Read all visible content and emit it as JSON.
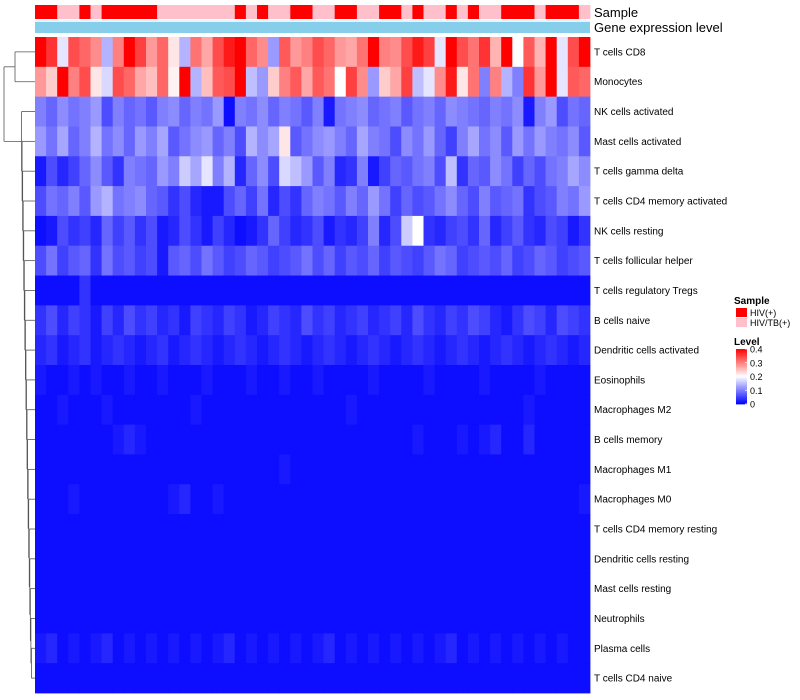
{
  "chart_data": {
    "type": "heatmap",
    "title": "",
    "annotation_rows": [
      "Sample",
      "Gene expression level"
    ],
    "sample_groups": [
      "HIV(+)",
      "HIV(+)",
      "HIV/TB(+)",
      "HIV/TB(+)",
      "HIV(+)",
      "HIV/TB(+)",
      "HIV(+)",
      "HIV(+)",
      "HIV(+)",
      "HIV(+)",
      "HIV(+)",
      "HIV/TB(+)",
      "HIV/TB(+)",
      "HIV/TB(+)",
      "HIV/TB(+)",
      "HIV/TB(+)",
      "HIV/TB(+)",
      "HIV/TB(+)",
      "HIV(+)",
      "HIV/TB(+)",
      "HIV(+)",
      "HIV/TB(+)",
      "HIV/TB(+)",
      "HIV(+)",
      "HIV(+)",
      "HIV/TB(+)",
      "HIV/TB(+)",
      "HIV(+)",
      "HIV(+)",
      "HIV/TB(+)",
      "HIV/TB(+)",
      "HIV(+)",
      "HIV(+)",
      "HIV/TB(+)",
      "HIV(+)",
      "HIV/TB(+)",
      "HIV/TB(+)",
      "HIV(+)",
      "HIV/TB(+)",
      "HIV(+)",
      "HIV/TB(+)",
      "HIV/TB(+)",
      "HIV(+)",
      "HIV(+)",
      "HIV(+)",
      "HIV/TB(+)",
      "HIV(+)",
      "HIV(+)",
      "HIV(+)",
      "HIV/TB(+)"
    ],
    "rows": [
      "T cells CD8",
      "Monocytes",
      "NK cells activated",
      "Mast cells activated",
      "T cells gamma delta",
      "T cells CD4 memory activated",
      "NK cells resting",
      "T cells follicular helper",
      "T cells regulatory  Tregs",
      "B cells naive",
      "Dendritic cells activated",
      "Eosinophils",
      "Macrophages M2",
      "B cells memory",
      "Macrophages M1",
      "Macrophages M0",
      "T cells CD4 memory resting",
      "Dendritic cells resting",
      "Mast cells resting",
      "Neutrophils",
      "Plasma cells",
      "T cells CD4 naive"
    ],
    "values": [
      [
        0.42,
        0.36,
        0.18,
        0.34,
        0.32,
        0.29,
        0.14,
        0.3,
        0.4,
        0.35,
        0.28,
        0.32,
        0.22,
        0.14,
        0.31,
        0.27,
        0.34,
        0.38,
        0.41,
        0.32,
        0.29,
        0.12,
        0.33,
        0.28,
        0.3,
        0.34,
        0.32,
        0.28,
        0.27,
        0.31,
        0.43,
        0.3,
        0.29,
        0.34,
        0.38,
        0.35,
        0.18,
        0.4,
        0.34,
        0.31,
        0.36,
        0.26,
        0.43,
        0.2,
        0.33,
        0.26,
        0.42,
        0.18,
        0.34,
        0.4
      ],
      [
        0.28,
        0.24,
        0.41,
        0.3,
        0.34,
        0.22,
        0.17,
        0.34,
        0.32,
        0.27,
        0.25,
        0.32,
        0.21,
        0.45,
        0.14,
        0.25,
        0.33,
        0.34,
        0.4,
        0.15,
        0.12,
        0.24,
        0.3,
        0.33,
        0.27,
        0.33,
        0.31,
        0.2,
        0.35,
        0.29,
        0.12,
        0.24,
        0.27,
        0.35,
        0.15,
        0.18,
        0.29,
        0.38,
        0.22,
        0.31,
        0.1,
        0.3,
        0.14,
        0.1,
        0.36,
        0.28,
        0.42,
        0.18,
        0.33,
        0.32
      ],
      [
        0.1,
        0.08,
        0.11,
        0.09,
        0.1,
        0.12,
        0.06,
        0.1,
        0.08,
        0.09,
        0.07,
        0.1,
        0.11,
        0.08,
        0.1,
        0.09,
        0.12,
        0.01,
        0.1,
        0.09,
        0.11,
        0.08,
        0.1,
        0.09,
        0.07,
        0.1,
        0.02,
        0.09,
        0.1,
        0.11,
        0.08,
        0.09,
        0.1,
        0.07,
        0.09,
        0.1,
        0.08,
        0.11,
        0.1,
        0.09,
        0.08,
        0.1,
        0.09,
        0.11,
        0.02,
        0.1,
        0.12,
        0.06,
        0.09,
        0.08
      ],
      [
        0.12,
        0.09,
        0.13,
        0.08,
        0.1,
        0.14,
        0.09,
        0.11,
        0.08,
        0.12,
        0.1,
        0.13,
        0.07,
        0.09,
        0.11,
        0.12,
        0.08,
        0.1,
        0.06,
        0.14,
        0.11,
        0.13,
        0.22,
        0.07,
        0.09,
        0.11,
        0.12,
        0.1,
        0.08,
        0.13,
        0.1,
        0.09,
        0.06,
        0.11,
        0.09,
        0.12,
        0.08,
        0.05,
        0.1,
        0.13,
        0.09,
        0.11,
        0.07,
        0.12,
        0.09,
        0.12,
        0.1,
        0.09,
        0.11,
        0.07
      ],
      [
        0.02,
        0.06,
        0.03,
        0.05,
        0.08,
        0.11,
        0.07,
        0.04,
        0.1,
        0.09,
        0.08,
        0.12,
        0.1,
        0.16,
        0.13,
        0.18,
        0.1,
        0.14,
        0.03,
        0.08,
        0.11,
        0.06,
        0.17,
        0.15,
        0.12,
        0.07,
        0.1,
        0.03,
        0.04,
        0.1,
        0.02,
        0.05,
        0.08,
        0.07,
        0.09,
        0.1,
        0.06,
        0.15,
        0.04,
        0.08,
        0.07,
        0.11,
        0.09,
        0.05,
        0.08,
        0.06,
        0.09,
        0.1,
        0.13,
        0.11
      ],
      [
        0.06,
        0.09,
        0.08,
        0.1,
        0.07,
        0.12,
        0.14,
        0.09,
        0.1,
        0.11,
        0.08,
        0.07,
        0.04,
        0.06,
        0.03,
        0.02,
        0.02,
        0.06,
        0.08,
        0.05,
        0.09,
        0.03,
        0.06,
        0.04,
        0.08,
        0.1,
        0.09,
        0.07,
        0.1,
        0.08,
        0.12,
        0.09,
        0.05,
        0.08,
        0.06,
        0.07,
        0.09,
        0.11,
        0.08,
        0.06,
        0.1,
        0.07,
        0.08,
        0.09,
        0.04,
        0.06,
        0.07,
        0.1,
        0.09,
        0.12
      ],
      [
        0.01,
        0.02,
        0.06,
        0.04,
        0.05,
        0.03,
        0.08,
        0.05,
        0.07,
        0.04,
        0.06,
        0.02,
        0.03,
        0.06,
        0.04,
        0.02,
        0.05,
        0.03,
        0.01,
        0.02,
        0.04,
        0.08,
        0.05,
        0.03,
        0.04,
        0.06,
        0.02,
        0.04,
        0.03,
        0.05,
        0.1,
        0.03,
        0.06,
        0.16,
        0.2,
        0.04,
        0.03,
        0.05,
        0.06,
        0.04,
        0.08,
        0.03,
        0.05,
        0.07,
        0.04,
        0.03,
        0.06,
        0.05,
        0.02,
        0.04
      ],
      [
        0.06,
        0.09,
        0.05,
        0.07,
        0.08,
        0.04,
        0.09,
        0.06,
        0.07,
        0.05,
        0.06,
        0.02,
        0.07,
        0.08,
        0.06,
        0.09,
        0.07,
        0.05,
        0.06,
        0.08,
        0.07,
        0.05,
        0.06,
        0.07,
        0.09,
        0.06,
        0.08,
        0.05,
        0.07,
        0.06,
        0.08,
        0.05,
        0.07,
        0.06,
        0.05,
        0.07,
        0.09,
        0.08,
        0.05,
        0.06,
        0.07,
        0.06,
        0.08,
        0.05,
        0.06,
        0.08,
        0.07,
        0.05,
        0.06,
        0.07
      ],
      [
        0.01,
        0.01,
        0.01,
        0.01,
        0.04,
        0.01,
        0.01,
        0.01,
        0.01,
        0.01,
        0.01,
        0.01,
        0.01,
        0.01,
        0.01,
        0.01,
        0.01,
        0.01,
        0.01,
        0.01,
        0.01,
        0.01,
        0.01,
        0.01,
        0.01,
        0.01,
        0.01,
        0.01,
        0.01,
        0.01,
        0.01,
        0.01,
        0.01,
        0.01,
        0.01,
        0.01,
        0.01,
        0.01,
        0.01,
        0.01,
        0.01,
        0.01,
        0.01,
        0.01,
        0.01,
        0.01,
        0.01,
        0.01,
        0.01,
        0.01
      ],
      [
        0.04,
        0.06,
        0.03,
        0.05,
        0.04,
        0.02,
        0.05,
        0.03,
        0.06,
        0.04,
        0.05,
        0.03,
        0.04,
        0.02,
        0.05,
        0.04,
        0.03,
        0.05,
        0.04,
        0.02,
        0.03,
        0.05,
        0.04,
        0.03,
        0.06,
        0.04,
        0.05,
        0.03,
        0.04,
        0.05,
        0.03,
        0.04,
        0.05,
        0.03,
        0.06,
        0.04,
        0.03,
        0.05,
        0.04,
        0.06,
        0.05,
        0.03,
        0.02,
        0.04,
        0.06,
        0.05,
        0.03,
        0.06,
        0.05,
        0.04
      ],
      [
        0.03,
        0.04,
        0.02,
        0.03,
        0.04,
        0.02,
        0.03,
        0.04,
        0.03,
        0.02,
        0.03,
        0.04,
        0.02,
        0.03,
        0.04,
        0.03,
        0.02,
        0.03,
        0.04,
        0.03,
        0.02,
        0.03,
        0.04,
        0.03,
        0.02,
        0.03,
        0.04,
        0.03,
        0.02,
        0.03,
        0.04,
        0.03,
        0.02,
        0.03,
        0.04,
        0.03,
        0.02,
        0.03,
        0.04,
        0.03,
        0.02,
        0.03,
        0.04,
        0.03,
        0.02,
        0.03,
        0.04,
        0.03,
        0.02,
        0.03
      ],
      [
        0.02,
        0.01,
        0.01,
        0.02,
        0.01,
        0.02,
        0.01,
        0.01,
        0.02,
        0.01,
        0.01,
        0.02,
        0.01,
        0.01,
        0.01,
        0.02,
        0.01,
        0.01,
        0.01,
        0.02,
        0.01,
        0.01,
        0.02,
        0.01,
        0.01,
        0.02,
        0.01,
        0.01,
        0.01,
        0.01,
        0.02,
        0.01,
        0.01,
        0.01,
        0.01,
        0.02,
        0.01,
        0.01,
        0.01,
        0.01,
        0.02,
        0.01,
        0.01,
        0.01,
        0.01,
        0.02,
        0.01,
        0.01,
        0.01,
        0.01
      ],
      [
        0.01,
        0.01,
        0.02,
        0.01,
        0.01,
        0.01,
        0.02,
        0.01,
        0.01,
        0.01,
        0.01,
        0.01,
        0.01,
        0.01,
        0.02,
        0.01,
        0.01,
        0.01,
        0.01,
        0.01,
        0.01,
        0.01,
        0.01,
        0.01,
        0.01,
        0.01,
        0.01,
        0.01,
        0.02,
        0.01,
        0.01,
        0.01,
        0.01,
        0.01,
        0.01,
        0.01,
        0.01,
        0.01,
        0.01,
        0.01,
        0.01,
        0.01,
        0.01,
        0.01,
        0.02,
        0.01,
        0.01,
        0.01,
        0.01,
        0.01
      ],
      [
        0.01,
        0.01,
        0.01,
        0.01,
        0.01,
        0.01,
        0.01,
        0.02,
        0.03,
        0.02,
        0.01,
        0.01,
        0.01,
        0.01,
        0.01,
        0.01,
        0.01,
        0.01,
        0.01,
        0.01,
        0.01,
        0.01,
        0.01,
        0.01,
        0.01,
        0.01,
        0.01,
        0.01,
        0.01,
        0.01,
        0.01,
        0.01,
        0.01,
        0.01,
        0.02,
        0.01,
        0.01,
        0.01,
        0.02,
        0.01,
        0.02,
        0.03,
        0.01,
        0.01,
        0.03,
        0.01,
        0.01,
        0.01,
        0.01,
        0.01
      ],
      [
        0.01,
        0.01,
        0.01,
        0.01,
        0.01,
        0.01,
        0.01,
        0.01,
        0.01,
        0.01,
        0.01,
        0.01,
        0.01,
        0.01,
        0.01,
        0.01,
        0.01,
        0.01,
        0.01,
        0.01,
        0.01,
        0.01,
        0.02,
        0.01,
        0.01,
        0.01,
        0.01,
        0.01,
        0.01,
        0.01,
        0.01,
        0.01,
        0.01,
        0.01,
        0.01,
        0.01,
        0.01,
        0.01,
        0.01,
        0.01,
        0.01,
        0.01,
        0.01,
        0.01,
        0.01,
        0.01,
        0.01,
        0.01,
        0.01,
        0.01
      ],
      [
        0.01,
        0.01,
        0.01,
        0.02,
        0.01,
        0.01,
        0.01,
        0.01,
        0.01,
        0.01,
        0.01,
        0.01,
        0.02,
        0.03,
        0.01,
        0.01,
        0.02,
        0.01,
        0.01,
        0.01,
        0.01,
        0.01,
        0.01,
        0.01,
        0.01,
        0.01,
        0.01,
        0.01,
        0.01,
        0.01,
        0.01,
        0.01,
        0.01,
        0.01,
        0.01,
        0.01,
        0.01,
        0.01,
        0.01,
        0.01,
        0.01,
        0.01,
        0.01,
        0.01,
        0.01,
        0.01,
        0.01,
        0.01,
        0.01,
        0.02
      ],
      [
        0.01,
        0.01,
        0.01,
        0.01,
        0.01,
        0.01,
        0.01,
        0.01,
        0.01,
        0.01,
        0.01,
        0.01,
        0.01,
        0.01,
        0.01,
        0.01,
        0.01,
        0.01,
        0.01,
        0.01,
        0.01,
        0.01,
        0.01,
        0.01,
        0.01,
        0.01,
        0.01,
        0.01,
        0.01,
        0.01,
        0.01,
        0.01,
        0.01,
        0.01,
        0.01,
        0.01,
        0.01,
        0.01,
        0.01,
        0.01,
        0.01,
        0.01,
        0.01,
        0.01,
        0.01,
        0.01,
        0.01,
        0.01,
        0.01,
        0.01
      ],
      [
        0.01,
        0.01,
        0.01,
        0.01,
        0.01,
        0.01,
        0.01,
        0.01,
        0.01,
        0.01,
        0.01,
        0.01,
        0.01,
        0.01,
        0.01,
        0.01,
        0.01,
        0.01,
        0.01,
        0.01,
        0.01,
        0.01,
        0.01,
        0.01,
        0.01,
        0.01,
        0.01,
        0.01,
        0.01,
        0.01,
        0.01,
        0.01,
        0.01,
        0.01,
        0.01,
        0.01,
        0.01,
        0.01,
        0.01,
        0.01,
        0.01,
        0.01,
        0.01,
        0.01,
        0.01,
        0.01,
        0.01,
        0.01,
        0.01,
        0.01
      ],
      [
        0.01,
        0.01,
        0.01,
        0.01,
        0.01,
        0.01,
        0.01,
        0.01,
        0.01,
        0.01,
        0.01,
        0.01,
        0.01,
        0.01,
        0.01,
        0.01,
        0.01,
        0.01,
        0.01,
        0.01,
        0.01,
        0.01,
        0.01,
        0.01,
        0.01,
        0.01,
        0.01,
        0.01,
        0.01,
        0.01,
        0.01,
        0.01,
        0.01,
        0.01,
        0.01,
        0.01,
        0.01,
        0.01,
        0.01,
        0.01,
        0.01,
        0.01,
        0.01,
        0.01,
        0.01,
        0.01,
        0.01,
        0.01,
        0.01,
        0.01
      ],
      [
        0.01,
        0.01,
        0.01,
        0.01,
        0.01,
        0.01,
        0.01,
        0.01,
        0.01,
        0.01,
        0.01,
        0.01,
        0.01,
        0.01,
        0.01,
        0.01,
        0.01,
        0.01,
        0.01,
        0.01,
        0.01,
        0.01,
        0.01,
        0.01,
        0.01,
        0.01,
        0.01,
        0.01,
        0.01,
        0.01,
        0.01,
        0.01,
        0.01,
        0.01,
        0.01,
        0.01,
        0.01,
        0.01,
        0.01,
        0.01,
        0.01,
        0.01,
        0.01,
        0.01,
        0.01,
        0.01,
        0.01,
        0.01,
        0.01,
        0.01
      ],
      [
        0.02,
        0.03,
        0.01,
        0.02,
        0.01,
        0.02,
        0.03,
        0.01,
        0.02,
        0.01,
        0.02,
        0.01,
        0.02,
        0.01,
        0.02,
        0.01,
        0.02,
        0.03,
        0.01,
        0.02,
        0.01,
        0.02,
        0.01,
        0.02,
        0.01,
        0.02,
        0.03,
        0.01,
        0.02,
        0.01,
        0.02,
        0.01,
        0.02,
        0.01,
        0.02,
        0.01,
        0.02,
        0.03,
        0.01,
        0.02,
        0.01,
        0.02,
        0.01,
        0.02,
        0.01,
        0.02,
        0.01,
        0.02,
        0.01,
        0.01
      ],
      [
        0.01,
        0.01,
        0.01,
        0.01,
        0.01,
        0.01,
        0.01,
        0.01,
        0.01,
        0.01,
        0.01,
        0.01,
        0.01,
        0.01,
        0.01,
        0.01,
        0.01,
        0.01,
        0.01,
        0.01,
        0.01,
        0.01,
        0.01,
        0.01,
        0.01,
        0.01,
        0.01,
        0.01,
        0.01,
        0.01,
        0.01,
        0.01,
        0.01,
        0.01,
        0.01,
        0.01,
        0.01,
        0.01,
        0.01,
        0.01,
        0.01,
        0.01,
        0.01,
        0.01,
        0.01,
        0.01,
        0.01,
        0.01,
        0.01,
        0.01
      ]
    ],
    "expression_level_value": 1,
    "legend": {
      "sample_title": "Sample",
      "sample_items": [
        {
          "label": "HIV(+)",
          "color": "#ff0000"
        },
        {
          "label": "HIV/TB(+)",
          "color": "#ffc0cb"
        }
      ],
      "level_title": "Level",
      "level_ticks": [
        "0.4",
        "0.3",
        "0.2",
        "0.1",
        "0"
      ],
      "level_range": [
        0,
        0.4
      ]
    },
    "colors": {
      "low": "#0000ff",
      "mid": "#ffffff",
      "high": "#ff0000",
      "expression_bar": "#87ceeb"
    },
    "legend_position": "right"
  }
}
